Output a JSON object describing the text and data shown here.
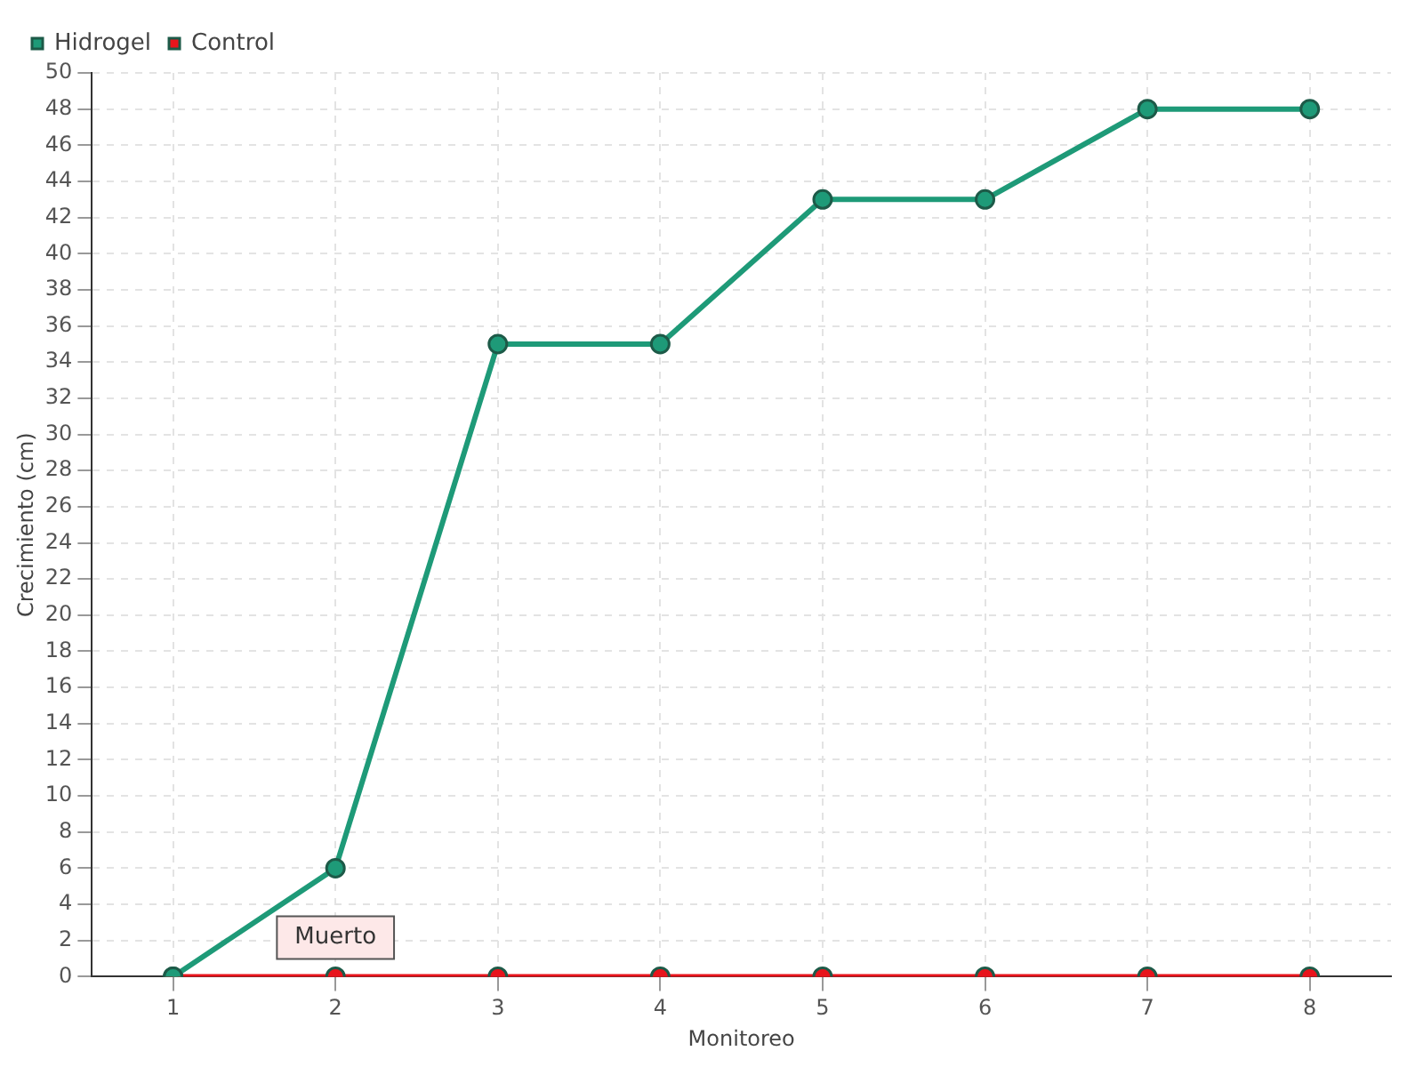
{
  "chart_data": {
    "type": "line",
    "xlabel": "Monitoreo",
    "ylabel": "Crecimiento (cm)",
    "categories": [
      "1",
      "2",
      "3",
      "4",
      "5",
      "6",
      "7",
      "8"
    ],
    "series": [
      {
        "name": "Hidrogel",
        "color": "#1e9a78",
        "values": [
          0,
          6,
          35,
          35,
          43,
          43,
          48,
          48
        ]
      },
      {
        "name": "Control",
        "color": "#e8141c",
        "values": [
          0,
          0,
          0,
          0,
          0,
          0,
          0,
          0
        ]
      }
    ],
    "ylim": [
      0,
      50
    ],
    "yticks": [
      0,
      2,
      4,
      6,
      8,
      10,
      12,
      14,
      16,
      18,
      20,
      22,
      24,
      26,
      28,
      30,
      32,
      34,
      36,
      38,
      40,
      42,
      44,
      46,
      48,
      50
    ],
    "grid": true,
    "legend": "top left",
    "marker": "circle",
    "line_style": "solid",
    "annotations": [
      {
        "text": "Muerto",
        "x": "2",
        "y": 0
      }
    ]
  }
}
